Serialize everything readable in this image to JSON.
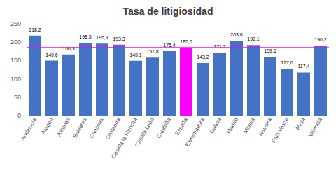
{
  "chart_data": {
    "type": "bar",
    "title": "Tasa de litigiosidad",
    "categories": [
      "Andalucía",
      "Aragón",
      "Asturias",
      "Baleares",
      "Canarias",
      "Cantabria",
      "Castilla la Mancha",
      "Castilla León",
      "Cataluña",
      "España",
      "Extremadura",
      "Galicia",
      "Madrid",
      "Murcia",
      "Navarra",
      "País Vasco",
      "Rioja",
      "Valencia"
    ],
    "values": [
      218.2,
      149.6,
      166.3,
      198.5,
      195.9,
      193.3,
      149.1,
      157.8,
      175.4,
      185.0,
      143.2,
      171.2,
      203.8,
      192.1,
      159.6,
      127.0,
      117.4,
      190.2
    ],
    "value_labels": [
      "218,2",
      "149,6",
      "166,3",
      "198,5",
      "195,9",
      "193,3",
      "149,1",
      "157,8",
      "175,4",
      "185,0",
      "143,2",
      "171,2",
      "203,8",
      "192,1",
      "159,6",
      "127,0",
      "117,4",
      "190,2"
    ],
    "data_labels": true,
    "colors": [
      "#4472C4",
      "#4472C4",
      "#4472C4",
      "#4472C4",
      "#4472C4",
      "#4472C4",
      "#4472C4",
      "#4472C4",
      "#4472C4",
      "#FF00FF",
      "#4472C4",
      "#4472C4",
      "#4472C4",
      "#4472C4",
      "#4472C4",
      "#4472C4",
      "#4472C4",
      "#4472C4"
    ],
    "reference_line": {
      "value": 185.0,
      "color": "#FF00FF"
    },
    "ylim": [
      0,
      250
    ],
    "yticks": [
      0,
      50,
      100,
      150,
      200,
      250
    ],
    "grid": false
  }
}
